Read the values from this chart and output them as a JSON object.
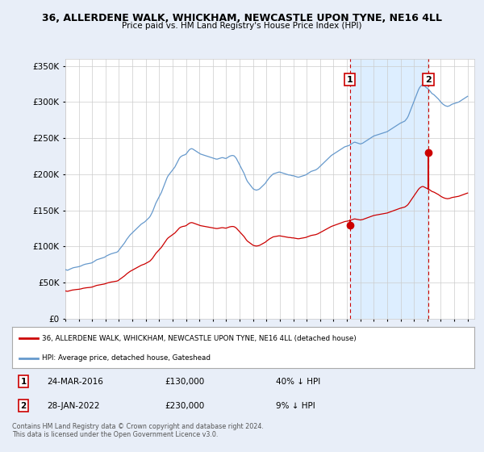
{
  "title": "36, ALLERDENE WALK, WHICKHAM, NEWCASTLE UPON TYNE, NE16 4LL",
  "subtitle": "Price paid vs. HM Land Registry's House Price Index (HPI)",
  "legend_line1": "36, ALLERDENE WALK, WHICKHAM, NEWCASTLE UPON TYNE, NE16 4LL (detached house)",
  "legend_line2": "HPI: Average price, detached house, Gateshead",
  "point1_label": "1",
  "point1_date": "24-MAR-2016",
  "point1_price": "£130,000",
  "point1_hpi": "40% ↓ HPI",
  "point1_year": 2016.21,
  "point1_value": 130000,
  "point2_label": "2",
  "point2_date": "28-JAN-2022",
  "point2_price": "£230,000",
  "point2_hpi": "9% ↓ HPI",
  "point2_year": 2022.08,
  "point2_value": 230000,
  "copyright_text": "Contains HM Land Registry data © Crown copyright and database right 2024.\nThis data is licensed under the Open Government Licence v3.0.",
  "red_color": "#cc0000",
  "blue_color": "#6699cc",
  "blue_fill_color": "#ddeeff",
  "background_color": "#e8eef8",
  "plot_bg_color": "#ffffff",
  "ylim": [
    0,
    360000
  ],
  "xlim_start": 1995.0,
  "xlim_end": 2025.5,
  "hpi_years": [
    1995.0,
    1995.083,
    1995.167,
    1995.25,
    1995.333,
    1995.417,
    1995.5,
    1995.583,
    1995.667,
    1995.75,
    1995.833,
    1995.917,
    1996.0,
    1996.083,
    1996.167,
    1996.25,
    1996.333,
    1996.417,
    1996.5,
    1996.583,
    1996.667,
    1996.75,
    1996.833,
    1996.917,
    1997.0,
    1997.083,
    1997.167,
    1997.25,
    1997.333,
    1997.417,
    1997.5,
    1997.583,
    1997.667,
    1997.75,
    1997.833,
    1997.917,
    1998.0,
    1998.083,
    1998.167,
    1998.25,
    1998.333,
    1998.417,
    1998.5,
    1998.583,
    1998.667,
    1998.75,
    1998.833,
    1998.917,
    1999.0,
    1999.083,
    1999.167,
    1999.25,
    1999.333,
    1999.417,
    1999.5,
    1999.583,
    1999.667,
    1999.75,
    1999.833,
    1999.917,
    2000.0,
    2000.083,
    2000.167,
    2000.25,
    2000.333,
    2000.417,
    2000.5,
    2000.583,
    2000.667,
    2000.75,
    2000.833,
    2000.917,
    2001.0,
    2001.083,
    2001.167,
    2001.25,
    2001.333,
    2001.417,
    2001.5,
    2001.583,
    2001.667,
    2001.75,
    2001.833,
    2001.917,
    2002.0,
    2002.083,
    2002.167,
    2002.25,
    2002.333,
    2002.417,
    2002.5,
    2002.583,
    2002.667,
    2002.75,
    2002.833,
    2002.917,
    2003.0,
    2003.083,
    2003.167,
    2003.25,
    2003.333,
    2003.417,
    2003.5,
    2003.583,
    2003.667,
    2003.75,
    2003.833,
    2003.917,
    2004.0,
    2004.083,
    2004.167,
    2004.25,
    2004.333,
    2004.417,
    2004.5,
    2004.583,
    2004.667,
    2004.75,
    2004.833,
    2004.917,
    2005.0,
    2005.083,
    2005.167,
    2005.25,
    2005.333,
    2005.417,
    2005.5,
    2005.583,
    2005.667,
    2005.75,
    2005.833,
    2005.917,
    2006.0,
    2006.083,
    2006.167,
    2006.25,
    2006.333,
    2006.417,
    2006.5,
    2006.583,
    2006.667,
    2006.75,
    2006.833,
    2006.917,
    2007.0,
    2007.083,
    2007.167,
    2007.25,
    2007.333,
    2007.417,
    2007.5,
    2007.583,
    2007.667,
    2007.75,
    2007.833,
    2007.917,
    2008.0,
    2008.083,
    2008.167,
    2008.25,
    2008.333,
    2008.417,
    2008.5,
    2008.583,
    2008.667,
    2008.75,
    2008.833,
    2008.917,
    2009.0,
    2009.083,
    2009.167,
    2009.25,
    2009.333,
    2009.417,
    2009.5,
    2009.583,
    2009.667,
    2009.75,
    2009.833,
    2009.917,
    2010.0,
    2010.083,
    2010.167,
    2010.25,
    2010.333,
    2010.417,
    2010.5,
    2010.583,
    2010.667,
    2010.75,
    2010.833,
    2010.917,
    2011.0,
    2011.083,
    2011.167,
    2011.25,
    2011.333,
    2011.417,
    2011.5,
    2011.583,
    2011.667,
    2011.75,
    2011.833,
    2011.917,
    2012.0,
    2012.083,
    2012.167,
    2012.25,
    2012.333,
    2012.417,
    2012.5,
    2012.583,
    2012.667,
    2012.75,
    2012.833,
    2012.917,
    2013.0,
    2013.083,
    2013.167,
    2013.25,
    2013.333,
    2013.417,
    2013.5,
    2013.583,
    2013.667,
    2013.75,
    2013.833,
    2013.917,
    2014.0,
    2014.083,
    2014.167,
    2014.25,
    2014.333,
    2014.417,
    2014.5,
    2014.583,
    2014.667,
    2014.75,
    2014.833,
    2014.917,
    2015.0,
    2015.083,
    2015.167,
    2015.25,
    2015.333,
    2015.417,
    2015.5,
    2015.583,
    2015.667,
    2015.75,
    2015.833,
    2015.917,
    2016.0,
    2016.083,
    2016.167,
    2016.25,
    2016.333,
    2016.417,
    2016.5,
    2016.583,
    2016.667,
    2016.75,
    2016.833,
    2016.917,
    2017.0,
    2017.083,
    2017.167,
    2017.25,
    2017.333,
    2017.417,
    2017.5,
    2017.583,
    2017.667,
    2017.75,
    2017.833,
    2017.917,
    2018.0,
    2018.083,
    2018.167,
    2018.25,
    2018.333,
    2018.417,
    2018.5,
    2018.583,
    2018.667,
    2018.75,
    2018.833,
    2018.917,
    2019.0,
    2019.083,
    2019.167,
    2019.25,
    2019.333,
    2019.417,
    2019.5,
    2019.583,
    2019.667,
    2019.75,
    2019.833,
    2019.917,
    2020.0,
    2020.083,
    2020.167,
    2020.25,
    2020.333,
    2020.417,
    2020.5,
    2020.583,
    2020.667,
    2020.75,
    2020.833,
    2020.917,
    2021.0,
    2021.083,
    2021.167,
    2021.25,
    2021.333,
    2021.417,
    2021.5,
    2021.583,
    2021.667,
    2021.75,
    2021.833,
    2021.917,
    2022.0,
    2022.083,
    2022.167,
    2022.25,
    2022.333,
    2022.417,
    2022.5,
    2022.583,
    2022.667,
    2022.75,
    2022.833,
    2022.917,
    2023.0,
    2023.083,
    2023.167,
    2023.25,
    2023.333,
    2023.417,
    2023.5,
    2023.583,
    2023.667,
    2023.75,
    2023.833,
    2023.917,
    2024.0,
    2024.083,
    2024.167,
    2024.25,
    2024.333,
    2024.417,
    2024.5,
    2024.583,
    2024.667,
    2024.75,
    2024.833,
    2024.917,
    2025.0
  ],
  "hpi_values": [
    68000,
    67500,
    67000,
    67800,
    68500,
    69200,
    70000,
    70500,
    70800,
    71200,
    71500,
    71800,
    72000,
    72500,
    73000,
    73800,
    74500,
    75000,
    75500,
    75800,
    76000,
    76300,
    76600,
    77000,
    77500,
    78500,
    79500,
    80500,
    81500,
    82000,
    82500,
    83000,
    83500,
    84000,
    84500,
    85000,
    86000,
    87000,
    87800,
    88500,
    89200,
    89800,
    90300,
    90800,
    91200,
    91600,
    92000,
    93000,
    95000,
    97000,
    99000,
    101000,
    103000,
    105000,
    107500,
    110000,
    112000,
    114000,
    116000,
    117500,
    119000,
    120500,
    122000,
    123500,
    125000,
    126500,
    128000,
    129500,
    131000,
    132000,
    133000,
    134000,
    135500,
    137000,
    138500,
    140000,
    142000,
    145000,
    148000,
    152000,
    156000,
    160000,
    163000,
    166000,
    169000,
    172000,
    175000,
    179000,
    183000,
    187000,
    191000,
    195000,
    198000,
    200000,
    202000,
    204000,
    206000,
    208000,
    210000,
    213000,
    216000,
    219000,
    222000,
    224000,
    225000,
    226000,
    226500,
    227000,
    228000,
    230000,
    232000,
    234000,
    235000,
    235500,
    235000,
    234000,
    233000,
    232000,
    231000,
    230000,
    229000,
    228000,
    227500,
    227000,
    226500,
    226000,
    225500,
    225000,
    224500,
    224000,
    223500,
    223000,
    222500,
    222000,
    221500,
    221000,
    221000,
    221500,
    222000,
    222500,
    223000,
    223000,
    222500,
    222000,
    222000,
    223000,
    224000,
    225000,
    225500,
    226000,
    226000,
    225500,
    224000,
    222000,
    219000,
    216000,
    213000,
    210000,
    207000,
    204000,
    201000,
    197000,
    193000,
    190000,
    188000,
    186000,
    184000,
    182000,
    180000,
    179000,
    178500,
    178000,
    178500,
    179000,
    180000,
    181500,
    183000,
    184500,
    186000,
    187500,
    190000,
    192000,
    194000,
    196000,
    197500,
    199000,
    200500,
    201000,
    201500,
    202000,
    202500,
    203000,
    203000,
    202500,
    202000,
    201500,
    201000,
    200500,
    200000,
    199500,
    199000,
    199000,
    198500,
    198000,
    198000,
    197500,
    197000,
    196500,
    196000,
    196000,
    196500,
    197000,
    197500,
    198000,
    198500,
    199000,
    200000,
    201000,
    202000,
    203000,
    204000,
    204500,
    205000,
    205500,
    206000,
    207000,
    208000,
    209500,
    211000,
    212500,
    214000,
    215500,
    217000,
    218500,
    220000,
    221500,
    223000,
    224500,
    226000,
    227000,
    228000,
    229000,
    230000,
    231000,
    232000,
    233000,
    234000,
    235000,
    236000,
    237000,
    238000,
    238500,
    239000,
    239500,
    240000,
    241000,
    242000,
    243000,
    244000,
    244500,
    244000,
    243500,
    243000,
    242500,
    242000,
    242500,
    243000,
    244000,
    245000,
    246000,
    247000,
    248000,
    249000,
    250000,
    251000,
    252000,
    253000,
    253500,
    254000,
    254500,
    255000,
    255500,
    256000,
    256500,
    257000,
    257500,
    258000,
    258500,
    259000,
    260000,
    261000,
    262000,
    263000,
    264000,
    265000,
    266000,
    267000,
    268000,
    269000,
    270000,
    271000,
    271500,
    272500,
    273000,
    274000,
    276000,
    278000,
    281000,
    285000,
    289000,
    293000,
    297000,
    301000,
    305000,
    309000,
    313000,
    317000,
    320000,
    322000,
    323500,
    324000,
    323000,
    321500,
    320000,
    319000,
    317500,
    316000,
    314000,
    312000,
    311000,
    310000,
    308500,
    307000,
    305500,
    304000,
    302000,
    300000,
    298500,
    297000,
    296000,
    295000,
    294500,
    294000,
    294500,
    295000,
    296000,
    297000,
    297500,
    298000,
    298500,
    299000,
    299500,
    300000,
    301000,
    302000,
    303000,
    304000,
    305000,
    306000,
    307000,
    308000
  ],
  "red_hpi_scale": 0.565
}
